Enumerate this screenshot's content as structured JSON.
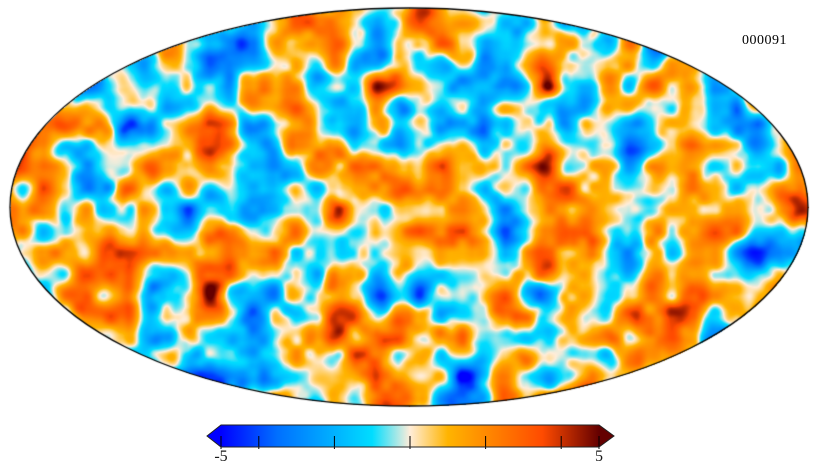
{
  "figure": {
    "frame_label": "000091",
    "background_color": "#ffffff"
  },
  "map": {
    "projection": "mollweide",
    "content": "Full-sky CMB-like Gaussian random temperature fluctuation field",
    "outline_color": "#000000",
    "noise": {
      "seed": 91,
      "octaves": [
        {
          "wavelength": 42,
          "amplitude": 1.0
        },
        {
          "wavelength": 21,
          "amplitude": 0.85
        },
        {
          "wavelength": 11,
          "amplitude": 0.28
        }
      ],
      "amplitude_scale": 3.0
    }
  },
  "chart_data": {
    "type": "heatmap",
    "subtype": "mollweide-sky-map",
    "title": "",
    "annotation": "000091",
    "value_range": [
      -5,
      5
    ],
    "field_description": "Simulated full-sky Gaussian random fluctuation map (realization 000091); values span approximately -5 to +5, blob features ~20 px across, rendered in a 2:1 Mollweide ellipse",
    "colorbar": {
      "orientation": "horizontal",
      "min_label": "-5",
      "max_label": "5",
      "tick_values": [
        -5,
        -4,
        -2,
        0,
        2,
        4,
        5
      ],
      "extend_arrows": "both",
      "colormap_name": "planck",
      "stops": [
        {
          "pos": 0.0,
          "color": "#0000ff"
        },
        {
          "pos": 0.15,
          "color": "#0070ff"
        },
        {
          "pos": 0.4,
          "color": "#00ddff"
        },
        {
          "pos": 0.5,
          "color": "#ffedd9"
        },
        {
          "pos": 0.6,
          "color": "#ffb400"
        },
        {
          "pos": 0.85,
          "color": "#ff4b00"
        },
        {
          "pos": 1.0,
          "color": "#640000"
        }
      ]
    }
  }
}
